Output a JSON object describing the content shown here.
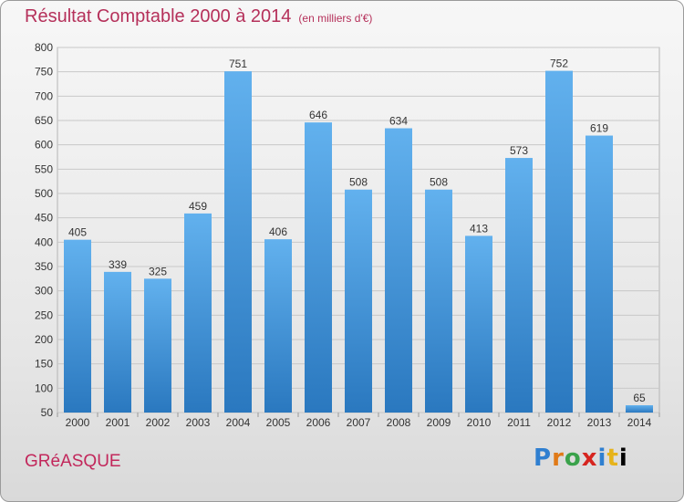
{
  "title": "Résultat Comptable 2000 à 2014",
  "subtitle": "(en milliers d'€)",
  "commune": "GRéASQUE",
  "logo": [
    "P",
    "r",
    "o",
    "x",
    "i",
    "t",
    "i"
  ],
  "colors": {
    "title": "#b5305a",
    "bar_top": "#62b1ee",
    "bar_bottom": "#2a78bf"
  },
  "chart_data": {
    "type": "bar",
    "title": "Résultat Comptable 2000 à 2014",
    "subtitle": "(en milliers d'€)",
    "categories": [
      "2000",
      "2001",
      "2002",
      "2003",
      "2004",
      "2005",
      "2006",
      "2007",
      "2008",
      "2009",
      "2010",
      "2011",
      "2012",
      "2013",
      "2014"
    ],
    "values": [
      405,
      339,
      325,
      459,
      751,
      406,
      646,
      508,
      634,
      508,
      413,
      573,
      752,
      619,
      65
    ],
    "ylim": [
      50,
      800
    ],
    "yticks": [
      50,
      100,
      150,
      200,
      250,
      300,
      350,
      400,
      450,
      500,
      550,
      600,
      650,
      700,
      750,
      800
    ],
    "grid": true
  }
}
